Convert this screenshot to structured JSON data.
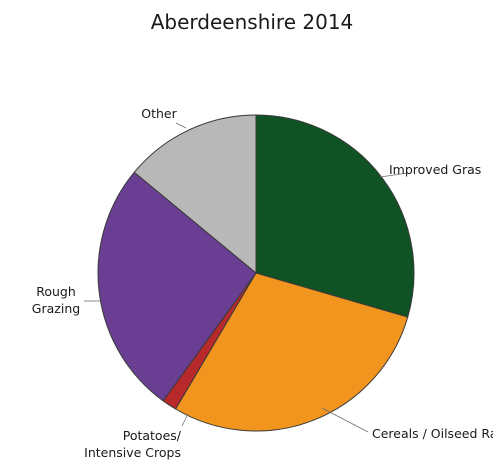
{
  "chart_data": {
    "type": "pie",
    "title": "Aberdeenshire 2014",
    "start_angle_deg": 90,
    "direction": "clockwise",
    "slices": [
      {
        "label": [
          "Improved Gras"
        ],
        "value": 29.5,
        "color": "#0f5223"
      },
      {
        "label": [
          "Cereals / Oilseed Rape"
        ],
        "value": 29.0,
        "color": "#f1951f"
      },
      {
        "label": [
          "Potatoes/",
          "Intensive Crops"
        ],
        "value": 1.5,
        "color": "#b7292a"
      },
      {
        "label": [
          "Rough",
          "Grazing"
        ],
        "value": 26.0,
        "color": "#6a3f93"
      },
      {
        "label": [
          "Other"
        ],
        "value": 14.0,
        "color": "#b8b8b8"
      }
    ]
  }
}
